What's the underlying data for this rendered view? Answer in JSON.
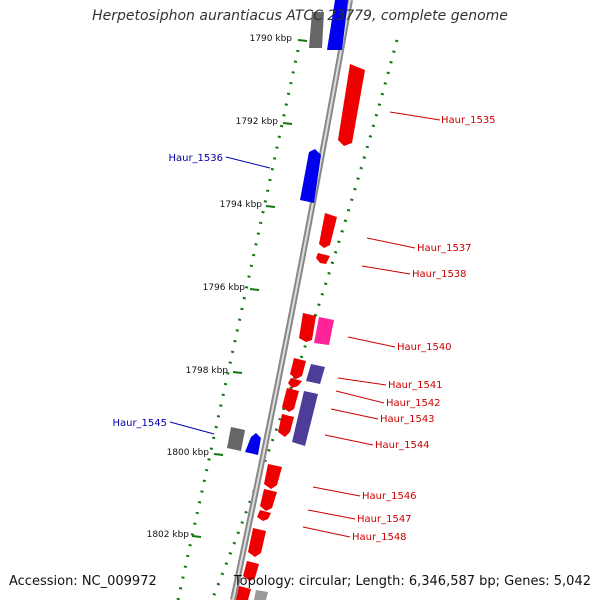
{
  "title": "Herpetosiphon aurantiacus ATCC 23779, complete genome",
  "footer": {
    "accession": "Accession: NC_009972",
    "summary": "Topology: circular; Length: 6,346,587 bp; Genes: 5,042"
  },
  "colors": {
    "backbone": "#888888",
    "forward_gene": "#ff0000",
    "reverse_gene": "#0000ff",
    "pink_gene": "#ff2299",
    "gray_gene": "#666666",
    "purple_gene": "#4d3d99",
    "tick": "#117711",
    "forward_label": "#cc0000",
    "reverse_label": "#0000aa"
  },
  "scale": {
    "unit": "kbp",
    "ticks": [
      "1790 kbp",
      "1792 kbp",
      "1794 kbp",
      "1796 kbp",
      "1798 kbp",
      "1800 kbp",
      "1802 kbp"
    ]
  },
  "genes": [
    {
      "label": "Haur_1535",
      "strand": "forward"
    },
    {
      "label": "Haur_1536",
      "strand": "reverse"
    },
    {
      "label": "Haur_1537",
      "strand": "forward"
    },
    {
      "label": "Haur_1538",
      "strand": "forward"
    },
    {
      "label": "Haur_1540",
      "strand": "forward"
    },
    {
      "label": "Haur_1541",
      "strand": "forward"
    },
    {
      "label": "Haur_1542",
      "strand": "forward"
    },
    {
      "label": "Haur_1543",
      "strand": "forward"
    },
    {
      "label": "Haur_1544",
      "strand": "forward"
    },
    {
      "label": "Haur_1545",
      "strand": "reverse"
    },
    {
      "label": "Haur_1546",
      "strand": "forward"
    },
    {
      "label": "Haur_1547",
      "strand": "forward"
    },
    {
      "label": "Haur_1548",
      "strand": "forward"
    }
  ]
}
